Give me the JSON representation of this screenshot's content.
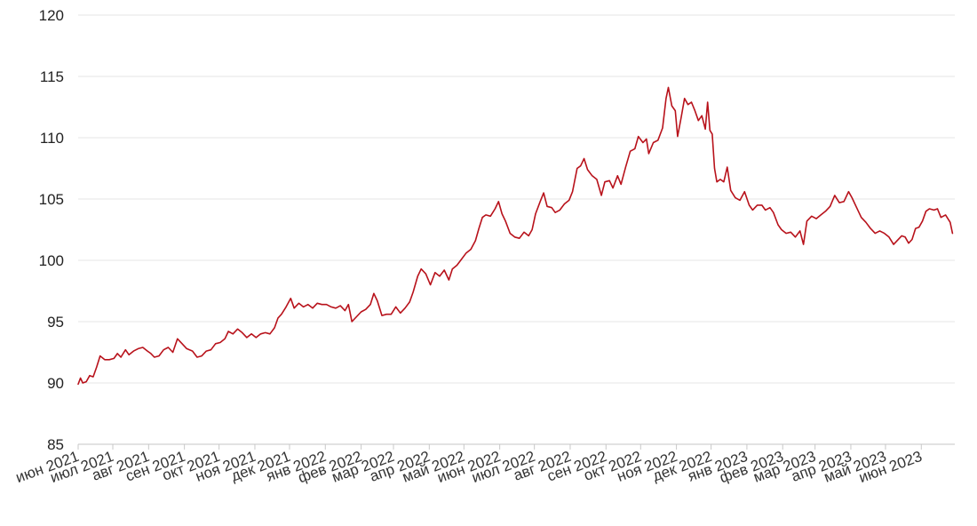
{
  "chart_data": {
    "type": "line",
    "title": "",
    "xlabel": "",
    "ylabel": "",
    "ylim": [
      85,
      120
    ],
    "yticks": [
      85,
      90,
      95,
      100,
      105,
      110,
      115,
      120
    ],
    "grid": true,
    "colors": {
      "line": "#b8121b",
      "grid": "#e6e6e6"
    },
    "x_range": [
      "2021-06-01",
      "2023-06-30"
    ],
    "month_labels": [
      "июн 2021",
      "июл 2021",
      "авг 2021",
      "сен 2021",
      "окт 2021",
      "ноя 2021",
      "дек 2021",
      "янв 2022",
      "фев 2022",
      "мар 2022",
      "апр 2022",
      "май 2022",
      "июн 2022",
      "июл 2022",
      "авг 2022",
      "сен 2022",
      "окт 2022",
      "ноя 2022",
      "дек 2022",
      "янв 2023",
      "фев 2023",
      "мар 2023",
      "апр 2023",
      "май 2023",
      "июн 2023"
    ],
    "series": [
      {
        "points": [
          [
            "2021-06-01",
            89.9
          ],
          [
            "2021-06-03",
            90.4
          ],
          [
            "2021-06-05",
            90.0
          ],
          [
            "2021-06-08",
            90.1
          ],
          [
            "2021-06-11",
            90.6
          ],
          [
            "2021-06-14",
            90.5
          ],
          [
            "2021-06-17",
            91.3
          ],
          [
            "2021-06-20",
            92.2
          ],
          [
            "2021-06-24",
            91.9
          ],
          [
            "2021-06-28",
            91.9
          ],
          [
            "2021-07-02",
            92.0
          ],
          [
            "2021-07-05",
            92.4
          ],
          [
            "2021-07-08",
            92.1
          ],
          [
            "2021-07-12",
            92.7
          ],
          [
            "2021-07-15",
            92.3
          ],
          [
            "2021-07-19",
            92.6
          ],
          [
            "2021-07-23",
            92.8
          ],
          [
            "2021-07-27",
            92.9
          ],
          [
            "2021-07-31",
            92.6
          ],
          [
            "2021-08-03",
            92.4
          ],
          [
            "2021-08-06",
            92.1
          ],
          [
            "2021-08-10",
            92.2
          ],
          [
            "2021-08-14",
            92.7
          ],
          [
            "2021-08-18",
            92.9
          ],
          [
            "2021-08-22",
            92.5
          ],
          [
            "2021-08-26",
            93.6
          ],
          [
            "2021-08-30",
            93.2
          ],
          [
            "2021-09-03",
            92.8
          ],
          [
            "2021-09-08",
            92.6
          ],
          [
            "2021-09-12",
            92.1
          ],
          [
            "2021-09-16",
            92.2
          ],
          [
            "2021-09-20",
            92.6
          ],
          [
            "2021-09-24",
            92.7
          ],
          [
            "2021-09-28",
            93.2
          ],
          [
            "2021-10-02",
            93.3
          ],
          [
            "2021-10-06",
            93.6
          ],
          [
            "2021-10-09",
            94.2
          ],
          [
            "2021-10-13",
            94.0
          ],
          [
            "2021-10-17",
            94.4
          ],
          [
            "2021-10-21",
            94.1
          ],
          [
            "2021-10-25",
            93.7
          ],
          [
            "2021-10-29",
            94.0
          ],
          [
            "2021-11-02",
            93.7
          ],
          [
            "2021-11-06",
            94.0
          ],
          [
            "2021-11-10",
            94.1
          ],
          [
            "2021-11-14",
            94.0
          ],
          [
            "2021-11-18",
            94.5
          ],
          [
            "2021-11-21",
            95.3
          ],
          [
            "2021-11-24",
            95.6
          ],
          [
            "2021-11-28",
            96.2
          ],
          [
            "2021-12-02",
            96.9
          ],
          [
            "2021-12-05",
            96.1
          ],
          [
            "2021-12-09",
            96.5
          ],
          [
            "2021-12-13",
            96.2
          ],
          [
            "2021-12-17",
            96.4
          ],
          [
            "2021-12-21",
            96.1
          ],
          [
            "2021-12-25",
            96.5
          ],
          [
            "2021-12-29",
            96.4
          ],
          [
            "2022-01-02",
            96.4
          ],
          [
            "2022-01-06",
            96.2
          ],
          [
            "2022-01-10",
            96.1
          ],
          [
            "2022-01-14",
            96.3
          ],
          [
            "2022-01-18",
            95.9
          ],
          [
            "2022-01-21",
            96.4
          ],
          [
            "2022-01-24",
            95.0
          ],
          [
            "2022-01-28",
            95.4
          ],
          [
            "2022-02-01",
            95.8
          ],
          [
            "2022-02-05",
            96.0
          ],
          [
            "2022-02-09",
            96.4
          ],
          [
            "2022-02-12",
            97.3
          ],
          [
            "2022-02-15",
            96.7
          ],
          [
            "2022-02-19",
            95.5
          ],
          [
            "2022-02-23",
            95.6
          ],
          [
            "2022-02-27",
            95.6
          ],
          [
            "2022-03-03",
            96.2
          ],
          [
            "2022-03-07",
            95.7
          ],
          [
            "2022-03-11",
            96.1
          ],
          [
            "2022-03-15",
            96.6
          ],
          [
            "2022-03-18",
            97.4
          ],
          [
            "2022-03-22",
            98.7
          ],
          [
            "2022-03-25",
            99.3
          ],
          [
            "2022-03-29",
            98.9
          ],
          [
            "2022-04-02",
            98.0
          ],
          [
            "2022-04-06",
            99.0
          ],
          [
            "2022-04-10",
            98.7
          ],
          [
            "2022-04-14",
            99.2
          ],
          [
            "2022-04-18",
            98.4
          ],
          [
            "2022-04-21",
            99.3
          ],
          [
            "2022-04-25",
            99.6
          ],
          [
            "2022-04-29",
            100.1
          ],
          [
            "2022-05-03",
            100.6
          ],
          [
            "2022-05-07",
            100.9
          ],
          [
            "2022-05-11",
            101.6
          ],
          [
            "2022-05-14",
            102.6
          ],
          [
            "2022-05-17",
            103.5
          ],
          [
            "2022-05-20",
            103.7
          ],
          [
            "2022-05-24",
            103.6
          ],
          [
            "2022-05-28",
            104.2
          ],
          [
            "2022-05-31",
            104.8
          ],
          [
            "2022-06-03",
            103.8
          ],
          [
            "2022-06-06",
            103.2
          ],
          [
            "2022-06-10",
            102.2
          ],
          [
            "2022-06-14",
            101.9
          ],
          [
            "2022-06-18",
            101.8
          ],
          [
            "2022-06-22",
            102.3
          ],
          [
            "2022-06-26",
            102.0
          ],
          [
            "2022-06-29",
            102.5
          ],
          [
            "2022-07-02",
            103.8
          ],
          [
            "2022-07-06",
            104.8
          ],
          [
            "2022-07-09",
            105.5
          ],
          [
            "2022-07-12",
            104.4
          ],
          [
            "2022-07-16",
            104.3
          ],
          [
            "2022-07-19",
            103.9
          ],
          [
            "2022-07-23",
            104.1
          ],
          [
            "2022-07-27",
            104.6
          ],
          [
            "2022-07-31",
            104.9
          ],
          [
            "2022-08-03",
            105.6
          ],
          [
            "2022-08-07",
            107.5
          ],
          [
            "2022-08-10",
            107.7
          ],
          [
            "2022-08-13",
            108.3
          ],
          [
            "2022-08-16",
            107.4
          ],
          [
            "2022-08-20",
            106.9
          ],
          [
            "2022-08-24",
            106.6
          ],
          [
            "2022-08-28",
            105.3
          ],
          [
            "2022-08-31",
            106.4
          ],
          [
            "2022-09-04",
            106.5
          ],
          [
            "2022-09-07",
            105.9
          ],
          [
            "2022-09-11",
            106.9
          ],
          [
            "2022-09-14",
            106.2
          ],
          [
            "2022-09-18",
            107.6
          ],
          [
            "2022-09-22",
            108.9
          ],
          [
            "2022-09-26",
            109.1
          ],
          [
            "2022-09-29",
            110.1
          ],
          [
            "2022-10-03",
            109.6
          ],
          [
            "2022-10-06",
            109.9
          ],
          [
            "2022-10-08",
            108.7
          ],
          [
            "2022-10-12",
            109.6
          ],
          [
            "2022-10-16",
            109.8
          ],
          [
            "2022-10-20",
            110.8
          ],
          [
            "2022-10-23",
            113.2
          ],
          [
            "2022-10-25",
            114.1
          ],
          [
            "2022-10-28",
            112.6
          ],
          [
            "2022-10-31",
            112.2
          ],
          [
            "2022-11-02",
            110.1
          ],
          [
            "2022-11-05",
            111.6
          ],
          [
            "2022-11-08",
            113.2
          ],
          [
            "2022-11-11",
            112.7
          ],
          [
            "2022-11-14",
            112.9
          ],
          [
            "2022-11-17",
            112.2
          ],
          [
            "2022-11-20",
            111.4
          ],
          [
            "2022-11-23",
            111.8
          ],
          [
            "2022-11-26",
            110.7
          ],
          [
            "2022-11-28",
            112.9
          ],
          [
            "2022-11-30",
            110.6
          ],
          [
            "2022-12-02",
            110.3
          ],
          [
            "2022-12-04",
            107.5
          ],
          [
            "2022-12-06",
            106.4
          ],
          [
            "2022-12-09",
            106.6
          ],
          [
            "2022-12-12",
            106.4
          ],
          [
            "2022-12-15",
            107.6
          ],
          [
            "2022-12-18",
            105.7
          ],
          [
            "2022-12-22",
            105.1
          ],
          [
            "2022-12-26",
            104.9
          ],
          [
            "2022-12-30",
            105.6
          ],
          [
            "2023-01-03",
            104.5
          ],
          [
            "2023-01-06",
            104.1
          ],
          [
            "2023-01-10",
            104.5
          ],
          [
            "2023-01-14",
            104.5
          ],
          [
            "2023-01-17",
            104.1
          ],
          [
            "2023-01-21",
            104.3
          ],
          [
            "2023-01-24",
            103.9
          ],
          [
            "2023-01-28",
            102.9
          ],
          [
            "2023-01-31",
            102.5
          ],
          [
            "2023-02-04",
            102.2
          ],
          [
            "2023-02-08",
            102.3
          ],
          [
            "2023-02-12",
            101.9
          ],
          [
            "2023-02-16",
            102.4
          ],
          [
            "2023-02-19",
            101.3
          ],
          [
            "2023-02-22",
            103.2
          ],
          [
            "2023-02-26",
            103.6
          ],
          [
            "2023-03-02",
            103.4
          ],
          [
            "2023-03-06",
            103.7
          ],
          [
            "2023-03-10",
            104.0
          ],
          [
            "2023-03-14",
            104.4
          ],
          [
            "2023-03-18",
            105.3
          ],
          [
            "2023-03-22",
            104.7
          ],
          [
            "2023-03-26",
            104.8
          ],
          [
            "2023-03-30",
            105.6
          ],
          [
            "2023-04-02",
            105.1
          ],
          [
            "2023-04-06",
            104.3
          ],
          [
            "2023-04-10",
            103.5
          ],
          [
            "2023-04-14",
            103.1
          ],
          [
            "2023-04-18",
            102.6
          ],
          [
            "2023-04-22",
            102.2
          ],
          [
            "2023-04-26",
            102.4
          ],
          [
            "2023-04-30",
            102.2
          ],
          [
            "2023-05-04",
            101.9
          ],
          [
            "2023-05-08",
            101.3
          ],
          [
            "2023-05-11",
            101.6
          ],
          [
            "2023-05-15",
            102.0
          ],
          [
            "2023-05-18",
            101.9
          ],
          [
            "2023-05-21",
            101.4
          ],
          [
            "2023-05-24",
            101.7
          ],
          [
            "2023-05-27",
            102.6
          ],
          [
            "2023-05-30",
            102.7
          ],
          [
            "2023-06-02",
            103.2
          ],
          [
            "2023-06-05",
            104.0
          ],
          [
            "2023-06-08",
            104.2
          ],
          [
            "2023-06-12",
            104.1
          ],
          [
            "2023-06-15",
            104.2
          ],
          [
            "2023-06-18",
            103.5
          ],
          [
            "2023-06-22",
            103.7
          ],
          [
            "2023-06-26",
            103.1
          ],
          [
            "2023-06-28",
            102.2
          ]
        ]
      }
    ]
  }
}
